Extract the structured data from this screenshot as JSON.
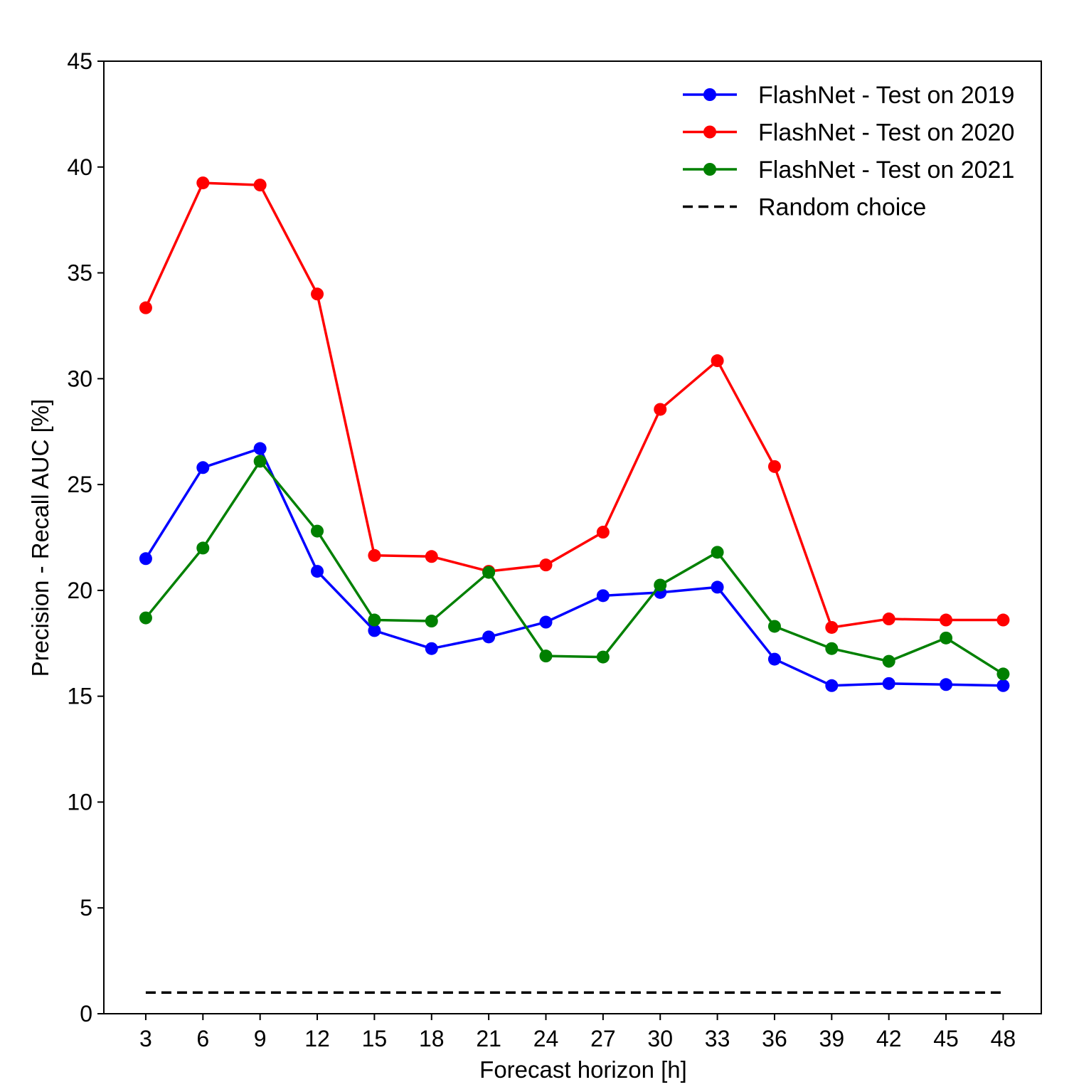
{
  "chart_data": {
    "type": "line",
    "title": "",
    "xlabel": "Forecast horizon [h]",
    "ylabel": "Precision - Recall AUC [%]",
    "x": [
      3,
      6,
      9,
      12,
      15,
      18,
      21,
      24,
      27,
      30,
      33,
      36,
      39,
      42,
      45,
      48
    ],
    "x_ticks": [
      "3",
      "6",
      "9",
      "12",
      "15",
      "18",
      "21",
      "24",
      "27",
      "30",
      "33",
      "36",
      "39",
      "42",
      "45",
      "48"
    ],
    "xlim": [
      0.8,
      50.0
    ],
    "ylim": [
      0,
      45
    ],
    "y_ticks": [
      "0",
      "5",
      "10",
      "15",
      "20",
      "25",
      "30",
      "35",
      "40",
      "45"
    ],
    "grid": false,
    "legend_position": "top-right",
    "series": [
      {
        "name": "FlashNet - Test on 2019",
        "color": "#0000ff",
        "marker": "circle",
        "values": [
          21.5,
          25.8,
          26.7,
          20.9,
          18.1,
          17.25,
          17.8,
          18.5,
          19.75,
          19.9,
          20.15,
          16.75,
          15.5,
          15.6,
          15.55,
          15.5
        ]
      },
      {
        "name": "FlashNet - Test on 2020",
        "color": "#ff0000",
        "marker": "circle",
        "values": [
          33.35,
          39.25,
          39.15,
          34.0,
          21.65,
          21.6,
          20.9,
          21.2,
          22.75,
          28.55,
          30.85,
          25.85,
          18.25,
          18.65,
          18.6,
          18.6
        ]
      },
      {
        "name": "FlashNet - Test on 2021",
        "color": "#008000",
        "marker": "circle",
        "values": [
          18.7,
          22.0,
          26.1,
          22.8,
          18.6,
          18.55,
          20.85,
          16.9,
          16.85,
          20.25,
          21.8,
          18.3,
          17.25,
          16.65,
          17.75,
          16.05
        ]
      },
      {
        "name": "Random choice",
        "color": "#000000",
        "dashed": true,
        "values": [
          1.0,
          1.0,
          1.0,
          1.0,
          1.0,
          1.0,
          1.0,
          1.0,
          1.0,
          1.0,
          1.0,
          1.0,
          1.0,
          1.0,
          1.0,
          1.0
        ]
      }
    ]
  }
}
